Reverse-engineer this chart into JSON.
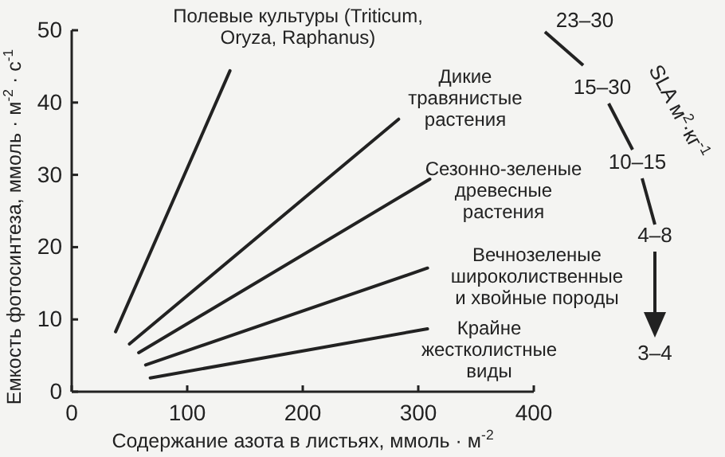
{
  "chart_data": {
    "type": "line",
    "xlabel": "Содержание азота в листьях, ммоль · м$^{-2}$",
    "ylabel": "Емкость фотосинтеза, ммоль · м$^{-2}$ · с$^{-1}$",
    "xlim": [
      0,
      400
    ],
    "xticks": [
      0,
      100,
      200,
      300,
      400
    ],
    "ylim": [
      0,
      50
    ],
    "yticks": [
      0,
      10,
      20,
      30,
      40,
      50
    ],
    "grid": false,
    "legend": false,
    "marker": "none",
    "line_style": "solid",
    "series": [
      {
        "name": "Полевые культуры (Triticum, Oryza, Raphanus)",
        "color": "#222222",
        "x": [
          38,
          137
        ],
        "values": [
          8.3,
          44.4
        ]
      },
      {
        "name": "Дикие травянистые растения",
        "color": "#222222",
        "x": [
          50,
          283
        ],
        "values": [
          6.6,
          37.7
        ]
      },
      {
        "name": "Сезонно-зеленые древесные растения",
        "color": "#222222",
        "x": [
          58,
          310
        ],
        "values": [
          5.4,
          29.4
        ]
      },
      {
        "name": "Вечнозеленые широколиственные и хвойные породы",
        "color": "#222222",
        "x": [
          64,
          308
        ],
        "values": [
          3.7,
          17.1
        ]
      },
      {
        "name": "Крайне жестколистные виды",
        "color": "#222222",
        "x": [
          68,
          308
        ],
        "values": [
          1.9,
          8.7
        ]
      }
    ],
    "annotations": [
      "23–30",
      "15–30",
      "10–15",
      "4–8",
      "3–4",
      "SLA м$^{2}$·кг$^{-1}$"
    ]
  }
}
